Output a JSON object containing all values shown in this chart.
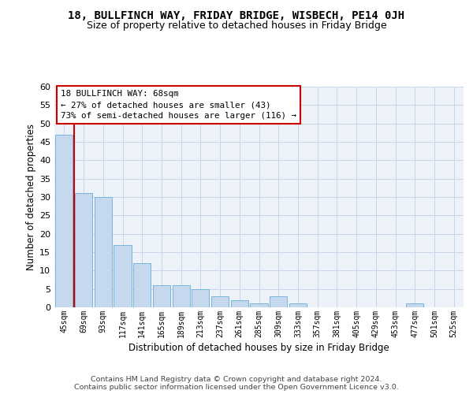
{
  "title1": "18, BULLFINCH WAY, FRIDAY BRIDGE, WISBECH, PE14 0JH",
  "title2": "Size of property relative to detached houses in Friday Bridge",
  "xlabel": "Distribution of detached houses by size in Friday Bridge",
  "ylabel": "Number of detached properties",
  "categories": [
    "45sqm",
    "69sqm",
    "93sqm",
    "117sqm",
    "141sqm",
    "165sqm",
    "189sqm",
    "213sqm",
    "237sqm",
    "261sqm",
    "285sqm",
    "309sqm",
    "333sqm",
    "357sqm",
    "381sqm",
    "405sqm",
    "429sqm",
    "453sqm",
    "477sqm",
    "501sqm",
    "525sqm"
  ],
  "values": [
    47,
    31,
    30,
    17,
    12,
    6,
    6,
    5,
    3,
    2,
    1,
    3,
    1,
    0,
    0,
    0,
    0,
    0,
    1,
    0,
    0
  ],
  "bar_color": "#c5d8ed",
  "bar_edge_color": "#6aaed6",
  "grid_color": "#c8d4e8",
  "background_color": "#edf1f8",
  "annot_line1": "18 BULLFINCH WAY: 68sqm",
  "annot_line2": "← 27% of detached houses are smaller (43)",
  "annot_line3": "73% of semi-detached houses are larger (116) →",
  "annot_box_facecolor": "#ffffff",
  "annot_box_edgecolor": "#cc0000",
  "property_line_color": "#cc0000",
  "property_line_x": 0.5,
  "ylim": [
    0,
    60
  ],
  "yticks": [
    0,
    5,
    10,
    15,
    20,
    25,
    30,
    35,
    40,
    45,
    50,
    55,
    60
  ],
  "footnote_line1": "Contains HM Land Registry data © Crown copyright and database right 2024.",
  "footnote_line2": "Contains public sector information licensed under the Open Government Licence v3.0."
}
